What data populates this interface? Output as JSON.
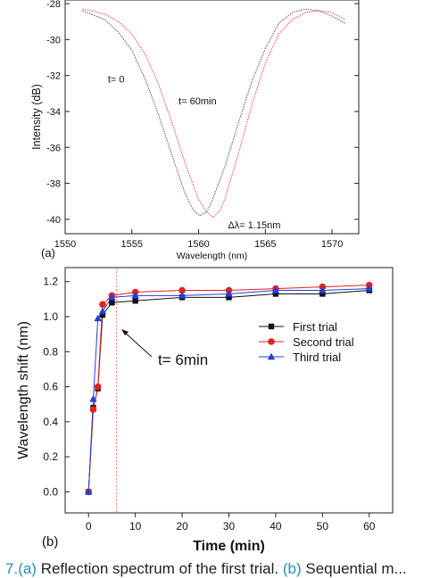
{
  "chart_data": [
    {
      "panel": "(a)",
      "type": "line",
      "xlabel": "Wavelength (nm)",
      "ylabel": "Intensity (dB)",
      "xlim": [
        1550,
        1572
      ],
      "ylim": [
        -40.8,
        -27.8
      ],
      "xticks": [
        1550,
        1555,
        1560,
        1565,
        1570
      ],
      "yticks": [
        -28,
        -30,
        -32,
        -34,
        -36,
        -38,
        -40
      ],
      "grid": false,
      "series": [
        {
          "name": "t= 0",
          "color": "#555555",
          "x": [
            1551.3,
            1552,
            1553,
            1554,
            1555,
            1556,
            1557,
            1558,
            1559,
            1559.6,
            1560.1,
            1560.6,
            1561,
            1562,
            1563,
            1564,
            1565,
            1566,
            1567,
            1568,
            1569,
            1570,
            1571
          ],
          "y": [
            -28.4,
            -28.6,
            -28.9,
            -29.6,
            -30.6,
            -32.2,
            -34.2,
            -36.4,
            -38.6,
            -39.5,
            -39.8,
            -39.6,
            -39.0,
            -37.0,
            -34.6,
            -32.3,
            -30.5,
            -29.1,
            -28.5,
            -28.3,
            -28.4,
            -28.7,
            -29.1
          ]
        },
        {
          "name": "t= 60min",
          "color": "#e8463c",
          "x": [
            1551.3,
            1552,
            1553,
            1554,
            1555,
            1556,
            1557,
            1558,
            1559,
            1560,
            1560.6,
            1561.1,
            1561.6,
            1562,
            1563,
            1564,
            1565,
            1566,
            1567,
            1568,
            1569,
            1570,
            1571
          ],
          "y": [
            -28.3,
            -28.4,
            -28.6,
            -29.0,
            -29.7,
            -30.8,
            -32.5,
            -34.6,
            -36.9,
            -38.9,
            -39.6,
            -39.9,
            -39.5,
            -38.8,
            -36.3,
            -33.6,
            -31.3,
            -29.7,
            -28.9,
            -28.5,
            -28.4,
            -28.5,
            -28.9
          ]
        }
      ],
      "annotations": [
        "t= 0",
        "t= 60min",
        "Δλ= 1.15nm"
      ]
    },
    {
      "panel": "(b)",
      "type": "line",
      "xlabel": "Time  (min)",
      "ylabel": "Wavelength shift  (nm)",
      "xlim": [
        -5,
        65
      ],
      "ylim": [
        -0.12,
        1.28
      ],
      "xticks": [
        0,
        10,
        20,
        30,
        40,
        50,
        60
      ],
      "yticks": [
        0.0,
        0.2,
        0.4,
        0.6,
        0.8,
        1.0,
        1.2
      ],
      "ytick_labels": [
        "0.0",
        "0.2",
        "0.4",
        "0.6",
        "0.8",
        "1.0",
        "1.2"
      ],
      "grid": false,
      "legend_position": "center-right",
      "x": [
        0,
        1,
        2,
        3,
        5,
        10,
        20,
        30,
        40,
        50,
        60
      ],
      "series": [
        {
          "name": "First trial",
          "color": "#111111",
          "marker": "square",
          "values": [
            0.0,
            0.48,
            0.59,
            1.01,
            1.08,
            1.09,
            1.11,
            1.11,
            1.13,
            1.13,
            1.15
          ]
        },
        {
          "name": "Second trial",
          "color": "#e62020",
          "marker": "circle",
          "values": [
            0.0,
            0.47,
            0.6,
            1.07,
            1.12,
            1.14,
            1.15,
            1.15,
            1.16,
            1.17,
            1.18
          ]
        },
        {
          "name": "Third trial",
          "color": "#1f3fe0",
          "marker": "triangle",
          "values": [
            0.0,
            0.53,
            0.99,
            1.03,
            1.11,
            1.12,
            1.12,
            1.13,
            1.15,
            1.15,
            1.16
          ]
        }
      ],
      "vline_x": 6,
      "annotation": "t= 6min"
    }
  ],
  "panel_labels": {
    "a": "(a)",
    "b": "(b)"
  },
  "caption": {
    "num": "7.",
    "a_ref": "(a)",
    "a_text": " Reflection spectrum of the first trial. ",
    "b_ref": "(b)",
    "b_text": " Sequential m..."
  }
}
